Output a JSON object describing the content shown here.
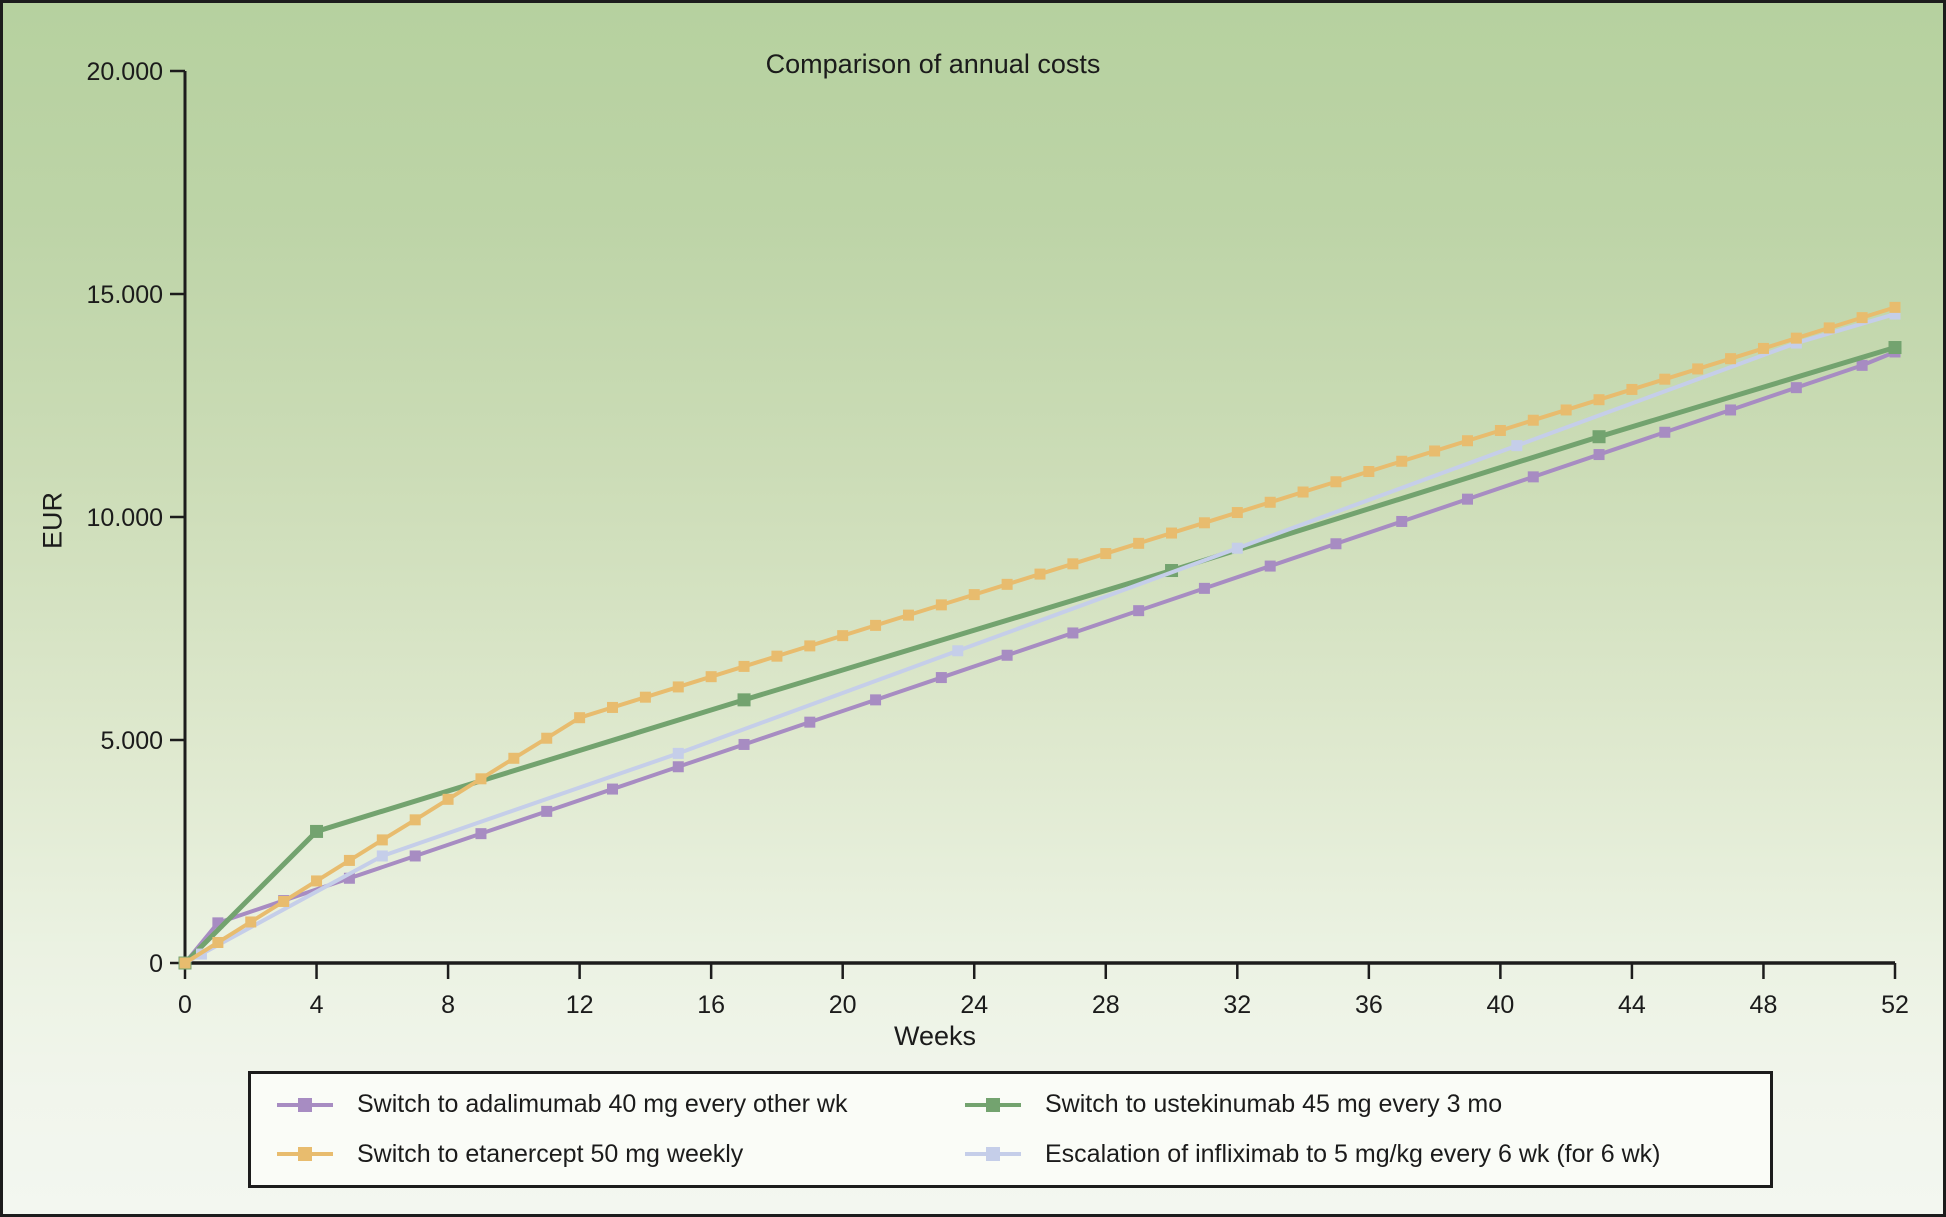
{
  "title": "Comparison of annual costs",
  "axes": {
    "x_label": "Weeks",
    "y_label": "EUR"
  },
  "colors": {
    "background_top": "#b6d19f",
    "background_bottom": "#f3f7f0",
    "axis": "#1c1c1c",
    "legend_background": "#fafcf7"
  },
  "chart_data": {
    "type": "line",
    "title": "Comparison of annual costs",
    "xlabel": "Weeks",
    "ylabel": "EUR",
    "xlim": [
      0,
      52
    ],
    "ylim": [
      0,
      20000
    ],
    "grid": false,
    "legend_position": "bottom",
    "x_ticks": [
      0,
      4,
      8,
      12,
      16,
      20,
      24,
      28,
      32,
      36,
      40,
      44,
      48,
      52
    ],
    "y_ticks": [
      {
        "v": 0,
        "label": "0"
      },
      {
        "v": 5000,
        "label": "5.000"
      },
      {
        "v": 10000,
        "label": "10.000"
      },
      {
        "v": 15000,
        "label": "15.000"
      },
      {
        "v": 20000,
        "label": "20.000"
      }
    ],
    "series": [
      {
        "id": "adalimumab",
        "name": "Switch to adalimumab 40 mg every other wk",
        "color": "#a78cc2",
        "line_width": 4,
        "marker": "square",
        "marker_size": 11,
        "x": [
          0,
          1,
          3,
          5,
          7,
          9,
          11,
          13,
          15,
          17,
          19,
          21,
          23,
          25,
          27,
          29,
          31,
          33,
          35,
          37,
          39,
          41,
          43,
          45,
          47,
          49,
          51,
          52
        ],
        "y": [
          0,
          900,
          1400,
          1900,
          2400,
          2900,
          3400,
          3900,
          4400,
          4900,
          5400,
          5900,
          6400,
          6900,
          7400,
          7900,
          8400,
          8900,
          9400,
          9900,
          10400,
          10900,
          11400,
          11900,
          12400,
          12900,
          13400,
          13700
        ]
      },
      {
        "id": "etanercept",
        "name": "Switch to etanercept 50 mg weekly",
        "color": "#e8bc6e",
        "line_width": 4,
        "marker": "square",
        "marker_size": 11,
        "x": [
          0,
          1,
          2,
          3,
          4,
          5,
          6,
          7,
          8,
          9,
          10,
          11,
          12,
          13,
          14,
          15,
          16,
          17,
          18,
          19,
          20,
          21,
          22,
          23,
          24,
          25,
          26,
          27,
          28,
          29,
          30,
          31,
          32,
          33,
          34,
          35,
          36,
          37,
          38,
          39,
          40,
          41,
          42,
          43,
          44,
          45,
          46,
          47,
          48,
          49,
          50,
          51,
          52
        ],
        "y": [
          0,
          460,
          920,
          1380,
          1840,
          2300,
          2760,
          3210,
          3670,
          4130,
          4590,
          5040,
          5500,
          5730,
          5960,
          6190,
          6420,
          6650,
          6880,
          7110,
          7340,
          7570,
          7800,
          8030,
          8260,
          8490,
          8720,
          8950,
          9180,
          9410,
          9640,
          9870,
          10100,
          10330,
          10560,
          10790,
          11020,
          11250,
          11480,
          11710,
          11940,
          12170,
          12400,
          12630,
          12860,
          13090,
          13320,
          13550,
          13780,
          14010,
          14240,
          14470,
          14700
        ]
      },
      {
        "id": "ustekinumab",
        "name": "Switch to ustekinumab 45 mg every 3 mo",
        "color": "#73a36f",
        "line_width": 5,
        "marker": "square",
        "marker_size": 13,
        "x": [
          0,
          4,
          17,
          30,
          43,
          52
        ],
        "y": [
          0,
          2950,
          5900,
          8800,
          11800,
          13800
        ]
      },
      {
        "id": "infliximab",
        "name": "Escalation of infliximab to 5 mg/kg every 6 wk (for 6 wk)",
        "color": "#c5cee9",
        "line_width": 4,
        "marker": "square",
        "marker_size": 11,
        "x": [
          0,
          0.5,
          6,
          15,
          23.5,
          32,
          40.5,
          49,
          52
        ],
        "y": [
          0,
          200,
          2400,
          4700,
          7000,
          9300,
          11600,
          13900,
          14550
        ]
      }
    ]
  }
}
